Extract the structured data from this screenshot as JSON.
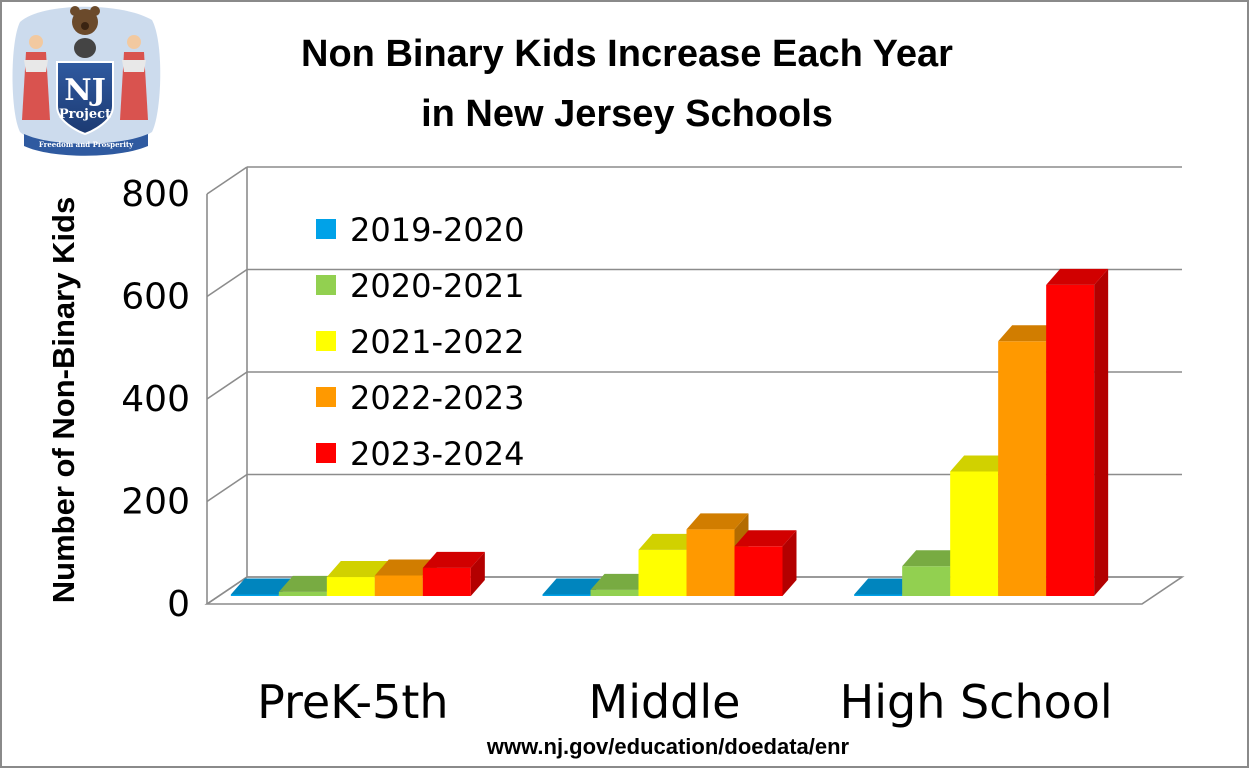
{
  "logo": {
    "mark": "NJ",
    "sub": "Project",
    "motto": "Freedom and Prosperity",
    "icon": "nj-seal-icon"
  },
  "source": "www.nj.gov/education/doedata/enr",
  "chart_data": {
    "type": "bar",
    "style": "3d-clustered-column",
    "title_lines": [
      "Non Binary Kids Increase Each Year",
      "in New Jersey Schools"
    ],
    "ylabel": "Number of Non-Binary Kids",
    "xlabel": "",
    "ylim": [
      0,
      800
    ],
    "yticks": [
      "0",
      "200",
      "400",
      "600",
      "800"
    ],
    "grid": true,
    "legend_position": "top-left",
    "categories": [
      "PreK-5th",
      "Middle",
      "High School"
    ],
    "series": [
      {
        "name": "2019-2020",
        "color": "#00a2e8",
        "values": [
          3,
          3,
          3
        ]
      },
      {
        "name": "2020-2021",
        "color": "#92d050",
        "values": [
          8,
          12,
          58
        ]
      },
      {
        "name": "2021-2022",
        "color": "#ffff00",
        "values": [
          37,
          90,
          243
        ]
      },
      {
        "name": "2022-2023",
        "color": "#ff9900",
        "values": [
          40,
          130,
          497
        ]
      },
      {
        "name": "2023-2024",
        "color": "#ff0000",
        "values": [
          55,
          97,
          607
        ]
      }
    ]
  }
}
